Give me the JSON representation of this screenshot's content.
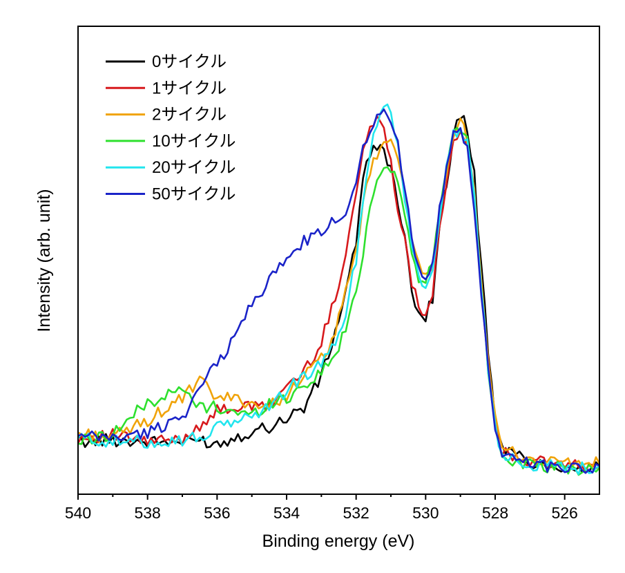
{
  "chart_data": {
    "type": "line",
    "xlabel": "Binding energy (eV)",
    "ylabel": "Intensity (arb. unit)",
    "xlim": [
      540,
      525
    ],
    "x_reversed": true,
    "ylim": [
      0,
      1
    ],
    "y_ticks_shown": false,
    "x_ticks": [
      540,
      538,
      536,
      534,
      532,
      530,
      528,
      526
    ],
    "x_tick_labels": [
      "540",
      "538",
      "536",
      "534",
      "532",
      "530",
      "528",
      "526"
    ],
    "legend_position": "top-left",
    "series": [
      {
        "name": "0サイクル",
        "color": "#000000",
        "x": [
          540,
          539,
          538,
          537,
          536.5,
          536,
          535.5,
          535,
          534.5,
          534,
          533.5,
          533,
          532.6,
          532.3,
          532,
          531.8,
          531.6,
          531.4,
          531.2,
          531,
          530.8,
          530.6,
          530.4,
          530.2,
          530,
          529.8,
          529.6,
          529.4,
          529.2,
          529,
          528.8,
          528.6,
          528.4,
          528.2,
          528,
          527.8,
          527.5,
          527,
          526.5,
          526,
          525.5,
          525
        ],
        "y": [
          0.12,
          0.125,
          0.12,
          0.12,
          0.125,
          0.115,
          0.13,
          0.145,
          0.155,
          0.175,
          0.2,
          0.27,
          0.37,
          0.47,
          0.58,
          0.72,
          0.78,
          0.8,
          0.79,
          0.75,
          0.66,
          0.58,
          0.47,
          0.42,
          0.41,
          0.45,
          0.62,
          0.72,
          0.82,
          0.87,
          0.84,
          0.73,
          0.52,
          0.33,
          0.18,
          0.1,
          0.095,
          0.075,
          0.065,
          0.065,
          0.06,
          0.065
        ]
      },
      {
        "name": "1サイクル",
        "color": "#d7191c",
        "x": [
          540,
          539,
          538,
          537,
          536.5,
          536,
          535.5,
          535,
          534.5,
          534,
          533.5,
          533,
          532.6,
          532.3,
          532,
          531.8,
          531.6,
          531.4,
          531.2,
          531,
          530.8,
          530.6,
          530.4,
          530.2,
          530,
          529.8,
          529.6,
          529.4,
          529.2,
          529,
          528.8,
          528.6,
          528.4,
          528.2,
          528,
          527.8,
          527.5,
          527,
          526.5,
          526,
          525.5,
          525
        ],
        "y": [
          0.13,
          0.135,
          0.12,
          0.125,
          0.16,
          0.19,
          0.2,
          0.2,
          0.2,
          0.25,
          0.28,
          0.35,
          0.45,
          0.56,
          0.69,
          0.79,
          0.84,
          0.86,
          0.84,
          0.77,
          0.66,
          0.58,
          0.49,
          0.43,
          0.42,
          0.46,
          0.62,
          0.72,
          0.8,
          0.82,
          0.8,
          0.68,
          0.48,
          0.3,
          0.16,
          0.095,
          0.09,
          0.075,
          0.07,
          0.07,
          0.06,
          0.065
        ]
      },
      {
        "name": "2サイクル",
        "color": "#f0a30a",
        "x": [
          540,
          539,
          538,
          537,
          536.5,
          536,
          535.5,
          535,
          534.5,
          534,
          533.5,
          533,
          532.6,
          532.3,
          532,
          531.8,
          531.6,
          531.4,
          531.2,
          531,
          530.8,
          530.6,
          530.4,
          530.2,
          530,
          529.8,
          529.6,
          529.4,
          529.2,
          529,
          528.8,
          528.6,
          528.4,
          528.2,
          528,
          527.8,
          527.5,
          527,
          526.5,
          526,
          525.5,
          525
        ],
        "y": [
          0.14,
          0.13,
          0.17,
          0.22,
          0.26,
          0.22,
          0.22,
          0.21,
          0.2,
          0.23,
          0.27,
          0.31,
          0.37,
          0.46,
          0.56,
          0.66,
          0.74,
          0.78,
          0.81,
          0.8,
          0.77,
          0.7,
          0.6,
          0.52,
          0.5,
          0.51,
          0.64,
          0.73,
          0.82,
          0.86,
          0.82,
          0.7,
          0.5,
          0.31,
          0.17,
          0.1,
          0.095,
          0.08,
          0.075,
          0.075,
          0.07,
          0.07
        ]
      },
      {
        "name": "10サイクル",
        "color": "#2ee02e",
        "x": [
          540,
          539,
          538,
          537,
          536.5,
          536,
          535.5,
          535,
          534.5,
          534,
          533.5,
          533,
          532.6,
          532.3,
          532,
          531.8,
          531.6,
          531.4,
          531.2,
          531,
          530.8,
          530.6,
          530.4,
          530.2,
          530,
          529.8,
          529.6,
          529.4,
          529.2,
          529,
          528.8,
          528.6,
          528.4,
          528.2,
          528,
          527.8,
          527.5,
          527,
          526.5,
          526,
          525.5,
          525
        ],
        "y": [
          0.12,
          0.14,
          0.21,
          0.24,
          0.2,
          0.2,
          0.19,
          0.18,
          0.21,
          0.22,
          0.25,
          0.28,
          0.32,
          0.38,
          0.46,
          0.56,
          0.66,
          0.72,
          0.76,
          0.75,
          0.72,
          0.64,
          0.55,
          0.49,
          0.5,
          0.52,
          0.65,
          0.75,
          0.83,
          0.84,
          0.81,
          0.68,
          0.48,
          0.29,
          0.15,
          0.09,
          0.08,
          0.065,
          0.06,
          0.06,
          0.055,
          0.06
        ]
      },
      {
        "name": "20サイクル",
        "color": "#22e5ee",
        "x": [
          540,
          539,
          538,
          537,
          536.5,
          536,
          535.5,
          535,
          534.5,
          534,
          533.5,
          533,
          532.6,
          532.3,
          532,
          531.8,
          531.6,
          531.4,
          531.2,
          531,
          530.8,
          530.6,
          530.4,
          530.2,
          530,
          529.8,
          529.6,
          529.4,
          529.2,
          529,
          528.8,
          528.6,
          528.4,
          528.2,
          528,
          527.8,
          527.5,
          527,
          526.5,
          526,
          525.5,
          525
        ],
        "y": [
          0.13,
          0.12,
          0.12,
          0.125,
          0.13,
          0.15,
          0.17,
          0.18,
          0.2,
          0.24,
          0.27,
          0.3,
          0.34,
          0.42,
          0.54,
          0.68,
          0.78,
          0.86,
          0.9,
          0.88,
          0.8,
          0.68,
          0.58,
          0.5,
          0.48,
          0.5,
          0.64,
          0.75,
          0.83,
          0.84,
          0.81,
          0.68,
          0.48,
          0.29,
          0.15,
          0.09,
          0.085,
          0.07,
          0.065,
          0.065,
          0.06,
          0.065
        ]
      },
      {
        "name": "50サイクル",
        "color": "#1a23c8",
        "x": [
          540,
          539,
          538,
          537,
          536.5,
          536,
          535.5,
          535,
          534.5,
          534,
          533.5,
          533,
          532.6,
          532.3,
          532,
          531.8,
          531.6,
          531.4,
          531.2,
          531,
          530.8,
          530.6,
          530.4,
          530.2,
          530,
          529.8,
          529.6,
          529.4,
          529.2,
          529,
          528.8,
          528.6,
          528.4,
          528.2,
          528,
          527.8,
          527.5,
          527,
          526.5,
          526,
          525.5,
          525
        ],
        "y": [
          0.13,
          0.13,
          0.14,
          0.18,
          0.24,
          0.3,
          0.36,
          0.44,
          0.49,
          0.54,
          0.58,
          0.6,
          0.63,
          0.65,
          0.72,
          0.8,
          0.84,
          0.87,
          0.88,
          0.86,
          0.8,
          0.7,
          0.6,
          0.52,
          0.5,
          0.53,
          0.65,
          0.75,
          0.82,
          0.83,
          0.79,
          0.66,
          0.46,
          0.28,
          0.15,
          0.09,
          0.085,
          0.075,
          0.065,
          0.065,
          0.06,
          0.065
        ]
      }
    ]
  }
}
